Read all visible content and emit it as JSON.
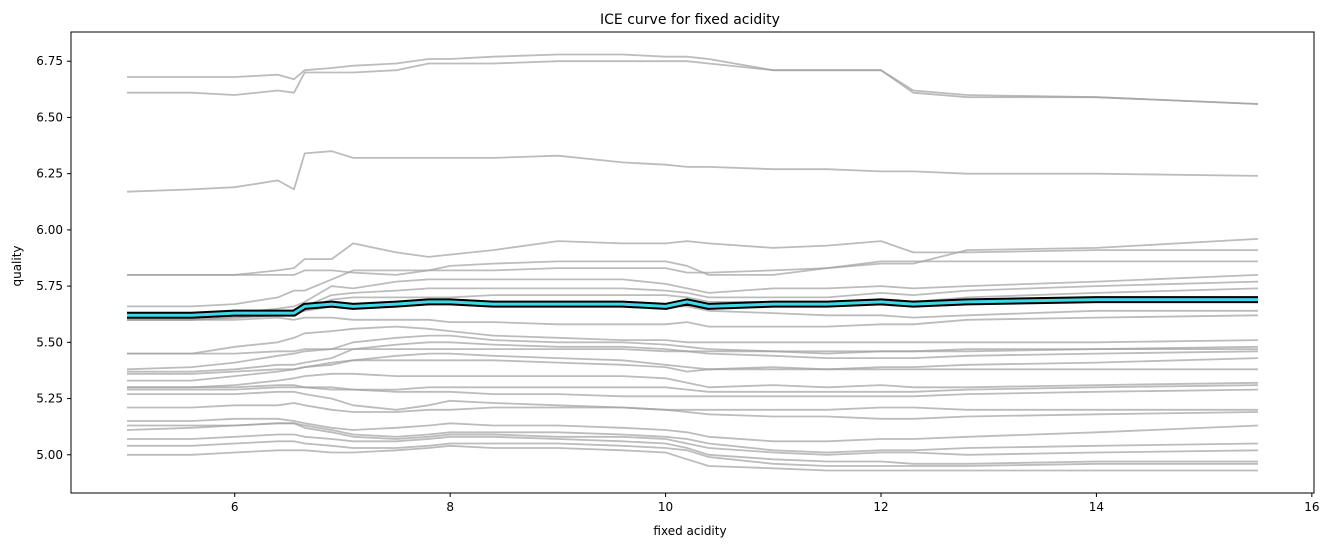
{
  "chart_data": {
    "type": "line",
    "title": "ICE curve for fixed acidity",
    "xlabel": "fixed acidity",
    "ylabel": "quality",
    "xlim": [
      4.48,
      16.02
    ],
    "ylim": [
      4.83,
      6.88
    ],
    "xticks": [
      6,
      8,
      10,
      12,
      14,
      16
    ],
    "yticks": [
      5.0,
      5.25,
      5.5,
      5.75,
      6.0,
      6.25,
      6.5,
      6.75
    ],
    "xtick_labels": [
      "6",
      "8",
      "10",
      "12",
      "14",
      "16"
    ],
    "ytick_labels": [
      "5.00",
      "5.25",
      "5.50",
      "5.75",
      "6.00",
      "6.25",
      "6.50",
      "6.75"
    ],
    "grid": false,
    "colors": {
      "ice_line": "#a0a0a0",
      "pdp_fill": "#3fd8e8",
      "pdp_outline": "#000000",
      "frame": "#000000"
    },
    "x": [
      5.0,
      5.6,
      6.0,
      6.4,
      6.55,
      6.65,
      6.9,
      7.1,
      7.5,
      7.8,
      8.0,
      8.4,
      9.0,
      9.6,
      10.0,
      10.2,
      10.4,
      11.0,
      11.5,
      12.0,
      12.3,
      12.8,
      14.0,
      15.5
    ],
    "series": [
      {
        "values": [
          6.68,
          6.68,
          6.68,
          6.69,
          6.67,
          6.71,
          6.72,
          6.73,
          6.74,
          6.76,
          6.76,
          6.77,
          6.78,
          6.78,
          6.77,
          6.77,
          6.76,
          6.71,
          6.71,
          6.71,
          6.62,
          6.6,
          6.59,
          6.56
        ]
      },
      {
        "values": [
          6.61,
          6.61,
          6.6,
          6.62,
          6.61,
          6.7,
          6.7,
          6.7,
          6.71,
          6.74,
          6.74,
          6.74,
          6.75,
          6.75,
          6.75,
          6.75,
          6.74,
          6.71,
          6.71,
          6.71,
          6.61,
          6.59,
          6.59,
          6.56
        ]
      },
      {
        "values": [
          6.17,
          6.18,
          6.19,
          6.22,
          6.18,
          6.34,
          6.35,
          6.32,
          6.32,
          6.32,
          6.32,
          6.32,
          6.33,
          6.3,
          6.29,
          6.28,
          6.28,
          6.27,
          6.27,
          6.26,
          6.26,
          6.25,
          6.25,
          6.24
        ]
      },
      {
        "values": [
          5.8,
          5.8,
          5.8,
          5.82,
          5.83,
          5.87,
          5.87,
          5.94,
          5.9,
          5.88,
          5.89,
          5.91,
          5.95,
          5.94,
          5.94,
          5.95,
          5.94,
          5.92,
          5.93,
          5.95,
          5.9,
          5.9,
          5.91,
          5.91
        ]
      },
      {
        "values": [
          5.8,
          5.8,
          5.8,
          5.8,
          5.8,
          5.82,
          5.82,
          5.81,
          5.8,
          5.82,
          5.84,
          5.85,
          5.86,
          5.86,
          5.86,
          5.84,
          5.8,
          5.8,
          5.83,
          5.85,
          5.85,
          5.91,
          5.92,
          5.96
        ]
      },
      {
        "values": [
          5.66,
          5.66,
          5.67,
          5.7,
          5.73,
          5.73,
          5.78,
          5.82,
          5.82,
          5.82,
          5.82,
          5.82,
          5.83,
          5.83,
          5.83,
          5.81,
          5.81,
          5.82,
          5.83,
          5.86,
          5.86,
          5.86,
          5.86,
          5.86
        ]
      },
      {
        "values": [
          5.62,
          5.62,
          5.63,
          5.65,
          5.66,
          5.68,
          5.75,
          5.74,
          5.77,
          5.78,
          5.78,
          5.78,
          5.78,
          5.78,
          5.76,
          5.74,
          5.72,
          5.74,
          5.74,
          5.75,
          5.74,
          5.75,
          5.77,
          5.8
        ]
      },
      {
        "values": [
          5.61,
          5.61,
          5.62,
          5.63,
          5.64,
          5.66,
          5.71,
          5.72,
          5.73,
          5.74,
          5.74,
          5.74,
          5.74,
          5.74,
          5.73,
          5.72,
          5.7,
          5.7,
          5.7,
          5.72,
          5.71,
          5.73,
          5.75,
          5.77
        ]
      },
      {
        "values": [
          5.6,
          5.6,
          5.61,
          5.62,
          5.64,
          5.65,
          5.69,
          5.7,
          5.7,
          5.7,
          5.7,
          5.71,
          5.71,
          5.71,
          5.71,
          5.7,
          5.68,
          5.68,
          5.67,
          5.68,
          5.68,
          5.7,
          5.72,
          5.74
        ]
      },
      {
        "values": [
          5.6,
          5.6,
          5.61,
          5.62,
          5.63,
          5.64,
          5.66,
          5.66,
          5.67,
          5.67,
          5.67,
          5.67,
          5.67,
          5.67,
          5.66,
          5.66,
          5.64,
          5.63,
          5.62,
          5.62,
          5.61,
          5.62,
          5.64,
          5.64
        ]
      },
      {
        "values": [
          5.6,
          5.6,
          5.6,
          5.61,
          5.6,
          5.61,
          5.61,
          5.6,
          5.6,
          5.6,
          5.59,
          5.59,
          5.58,
          5.58,
          5.58,
          5.59,
          5.57,
          5.57,
          5.57,
          5.58,
          5.58,
          5.6,
          5.61,
          5.62
        ]
      },
      {
        "values": [
          5.45,
          5.45,
          5.48,
          5.5,
          5.52,
          5.54,
          5.55,
          5.56,
          5.57,
          5.56,
          5.55,
          5.53,
          5.52,
          5.51,
          5.51,
          5.5,
          5.5,
          5.5,
          5.5,
          5.5,
          5.5,
          5.5,
          5.5,
          5.51
        ]
      },
      {
        "values": [
          5.45,
          5.45,
          5.45,
          5.46,
          5.46,
          5.47,
          5.47,
          5.47,
          5.47,
          5.47,
          5.47,
          5.47,
          5.47,
          5.47,
          5.46,
          5.46,
          5.46,
          5.46,
          5.46,
          5.46,
          5.46,
          5.46,
          5.47,
          5.48
        ]
      },
      {
        "values": [
          5.38,
          5.39,
          5.41,
          5.44,
          5.45,
          5.46,
          5.47,
          5.5,
          5.52,
          5.53,
          5.53,
          5.51,
          5.5,
          5.5,
          5.49,
          5.48,
          5.47,
          5.46,
          5.45,
          5.46,
          5.46,
          5.47,
          5.47,
          5.47
        ]
      },
      {
        "values": [
          5.37,
          5.37,
          5.38,
          5.4,
          5.4,
          5.41,
          5.43,
          5.47,
          5.49,
          5.5,
          5.5,
          5.49,
          5.48,
          5.48,
          5.47,
          5.46,
          5.45,
          5.44,
          5.43,
          5.43,
          5.43,
          5.44,
          5.45,
          5.46
        ]
      },
      {
        "values": [
          5.36,
          5.36,
          5.37,
          5.38,
          5.38,
          5.39,
          5.4,
          5.42,
          5.44,
          5.45,
          5.45,
          5.44,
          5.43,
          5.42,
          5.4,
          5.39,
          5.38,
          5.38,
          5.38,
          5.39,
          5.39,
          5.4,
          5.41,
          5.43
        ]
      },
      {
        "values": [
          5.33,
          5.33,
          5.35,
          5.37,
          5.38,
          5.39,
          5.41,
          5.42,
          5.42,
          5.42,
          5.42,
          5.42,
          5.41,
          5.4,
          5.39,
          5.37,
          5.38,
          5.39,
          5.38,
          5.38,
          5.38,
          5.38,
          5.38,
          5.38
        ]
      },
      {
        "values": [
          5.3,
          5.3,
          5.31,
          5.33,
          5.34,
          5.35,
          5.36,
          5.36,
          5.35,
          5.35,
          5.35,
          5.35,
          5.35,
          5.35,
          5.34,
          5.32,
          5.3,
          5.31,
          5.3,
          5.31,
          5.3,
          5.3,
          5.31,
          5.32
        ]
      },
      {
        "values": [
          5.3,
          5.3,
          5.3,
          5.31,
          5.31,
          5.3,
          5.3,
          5.29,
          5.29,
          5.3,
          5.3,
          5.3,
          5.3,
          5.3,
          5.3,
          5.29,
          5.28,
          5.28,
          5.28,
          5.28,
          5.28,
          5.29,
          5.3,
          5.31
        ]
      },
      {
        "values": [
          5.29,
          5.29,
          5.29,
          5.3,
          5.3,
          5.3,
          5.29,
          5.29,
          5.28,
          5.28,
          5.28,
          5.27,
          5.27,
          5.26,
          5.26,
          5.26,
          5.26,
          5.26,
          5.26,
          5.26,
          5.26,
          5.27,
          5.28,
          5.29
        ]
      },
      {
        "values": [
          5.27,
          5.27,
          5.27,
          5.28,
          5.28,
          5.27,
          5.25,
          5.22,
          5.2,
          5.22,
          5.24,
          5.23,
          5.22,
          5.21,
          5.2,
          5.2,
          5.2,
          5.2,
          5.2,
          5.21,
          5.21,
          5.2,
          5.2,
          5.2
        ]
      },
      {
        "values": [
          5.21,
          5.21,
          5.22,
          5.22,
          5.23,
          5.22,
          5.2,
          5.19,
          5.19,
          5.2,
          5.2,
          5.21,
          5.21,
          5.21,
          5.2,
          5.19,
          5.18,
          5.17,
          5.17,
          5.16,
          5.16,
          5.17,
          5.18,
          5.19
        ]
      },
      {
        "values": [
          5.15,
          5.15,
          5.16,
          5.16,
          5.15,
          5.14,
          5.12,
          5.11,
          5.12,
          5.13,
          5.14,
          5.13,
          5.13,
          5.12,
          5.11,
          5.1,
          5.08,
          5.06,
          5.06,
          5.07,
          5.07,
          5.08,
          5.1,
          5.13
        ]
      },
      {
        "values": [
          5.13,
          5.13,
          5.13,
          5.14,
          5.14,
          5.13,
          5.11,
          5.09,
          5.08,
          5.09,
          5.1,
          5.1,
          5.1,
          5.09,
          5.08,
          5.07,
          5.05,
          5.02,
          5.01,
          5.02,
          5.02,
          5.03,
          5.04,
          5.05
        ]
      },
      {
        "values": [
          5.11,
          5.12,
          5.13,
          5.14,
          5.14,
          5.12,
          5.1,
          5.08,
          5.07,
          5.08,
          5.09,
          5.09,
          5.08,
          5.08,
          5.07,
          5.05,
          5.03,
          5.01,
          5.0,
          5.01,
          5.01,
          5.0,
          5.01,
          5.02
        ]
      },
      {
        "values": [
          5.07,
          5.07,
          5.08,
          5.09,
          5.09,
          5.08,
          5.07,
          5.06,
          5.06,
          5.07,
          5.08,
          5.08,
          5.07,
          5.06,
          5.05,
          5.03,
          5.0,
          4.98,
          4.97,
          4.97,
          4.96,
          4.96,
          4.97,
          4.97
        ]
      },
      {
        "values": [
          5.04,
          5.04,
          5.05,
          5.06,
          5.06,
          5.05,
          5.04,
          5.03,
          5.03,
          5.04,
          5.05,
          5.05,
          5.05,
          5.04,
          5.03,
          5.02,
          4.99,
          4.96,
          4.95,
          4.95,
          4.95,
          4.95,
          4.96,
          4.96
        ]
      },
      {
        "values": [
          5.0,
          5.0,
          5.01,
          5.02,
          5.02,
          5.02,
          5.01,
          5.01,
          5.02,
          5.03,
          5.04,
          5.03,
          5.03,
          5.02,
          5.01,
          4.98,
          4.95,
          4.94,
          4.93,
          4.93,
          4.93,
          4.93,
          4.93,
          4.93
        ]
      }
    ],
    "pdp": {
      "values": [
        5.62,
        5.62,
        5.63,
        5.63,
        5.63,
        5.66,
        5.67,
        5.66,
        5.67,
        5.68,
        5.68,
        5.67,
        5.67,
        5.67,
        5.66,
        5.68,
        5.66,
        5.67,
        5.67,
        5.68,
        5.67,
        5.68,
        5.69,
        5.69
      ]
    }
  }
}
